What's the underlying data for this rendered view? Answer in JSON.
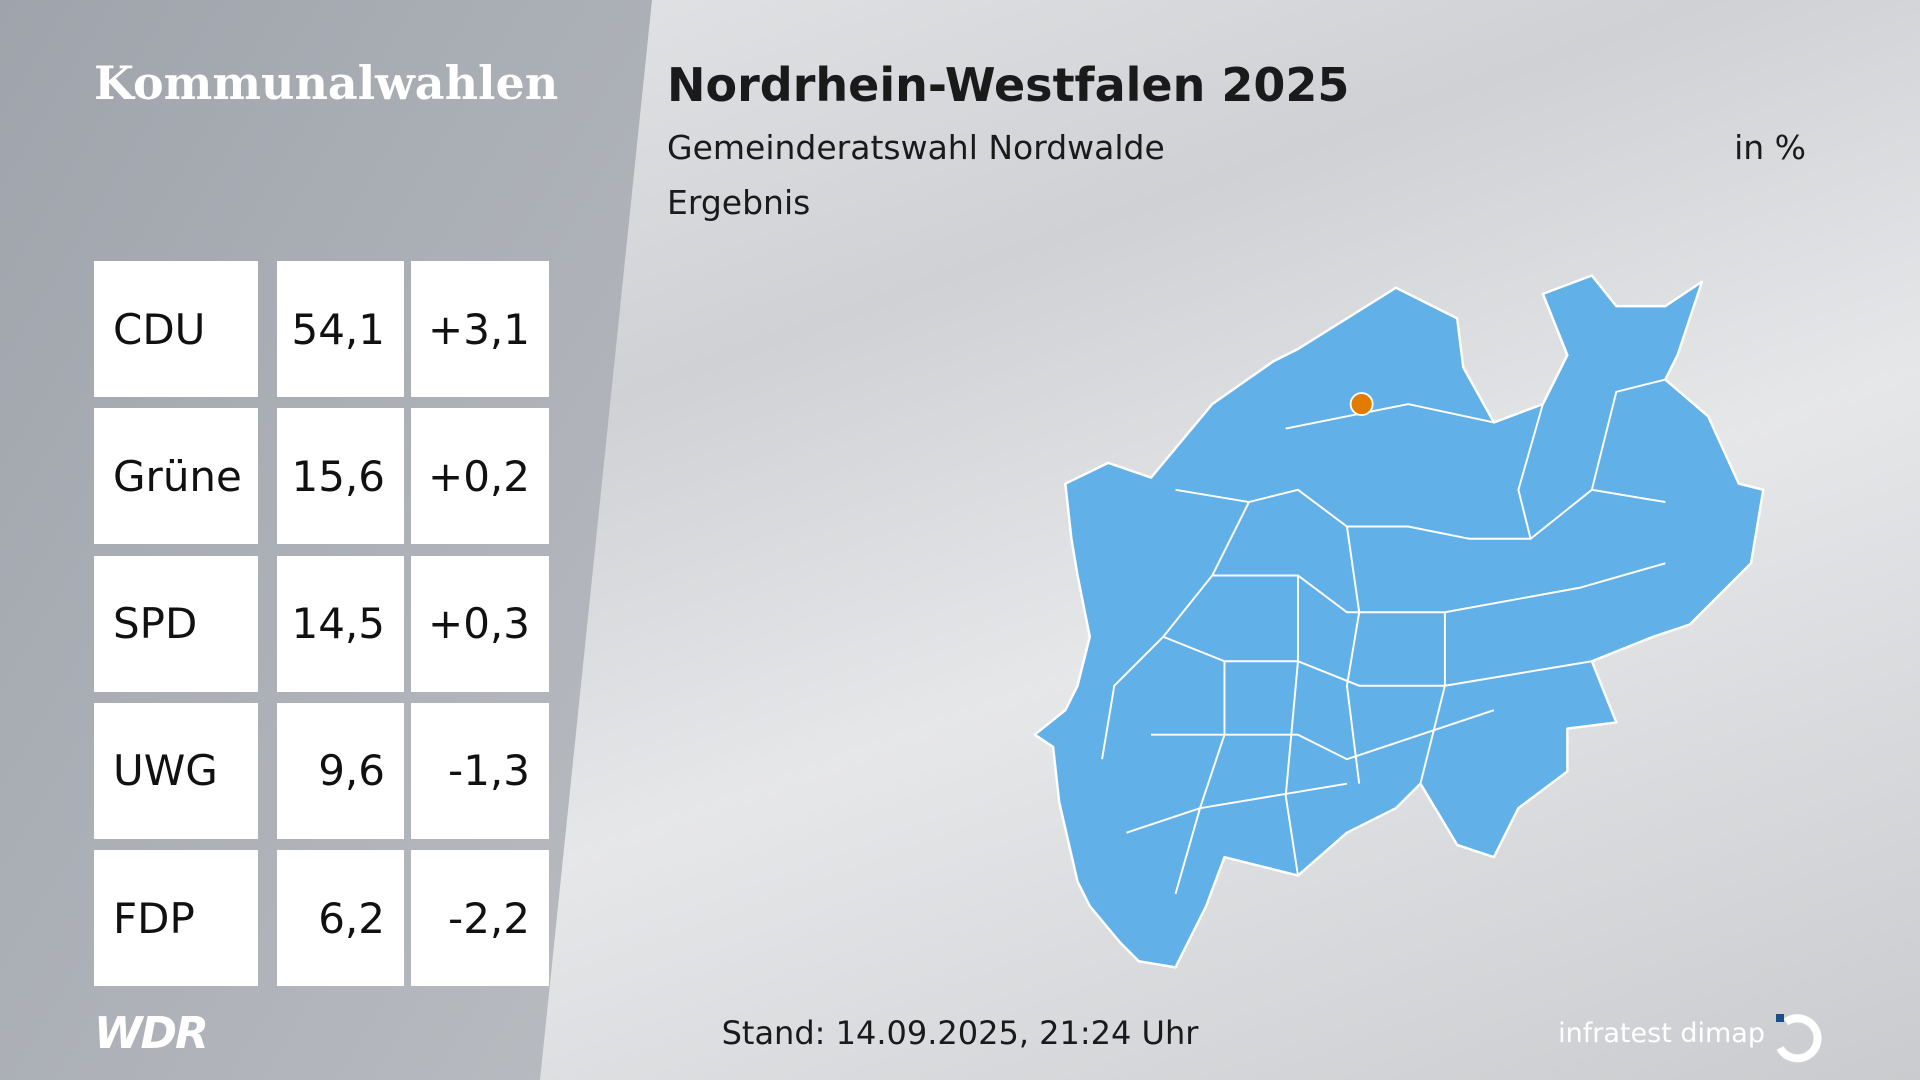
{
  "header": {
    "brand": "Kommunalwahlen",
    "title": "Nordrhein-Westfalen 2025",
    "subtitle": "Gemeinderatswahl Nordwalde",
    "unit": "in %",
    "status": "Ergebnis"
  },
  "table": {
    "rows": [
      [
        "CDU",
        "54,1",
        "+3,1"
      ],
      [
        "Grüne",
        "15,6",
        "+0,2"
      ],
      [
        "SPD",
        "14,5",
        "+0,3"
      ],
      [
        "UWG",
        "9,6",
        "-1,3"
      ],
      [
        "FDP",
        "6,2",
        "-2,2"
      ]
    ]
  },
  "footer": {
    "logo": "WDR",
    "timestamp": "Stand: 14.09.2025, 21:24 Uhr",
    "source": "infratest dimap"
  }
}
